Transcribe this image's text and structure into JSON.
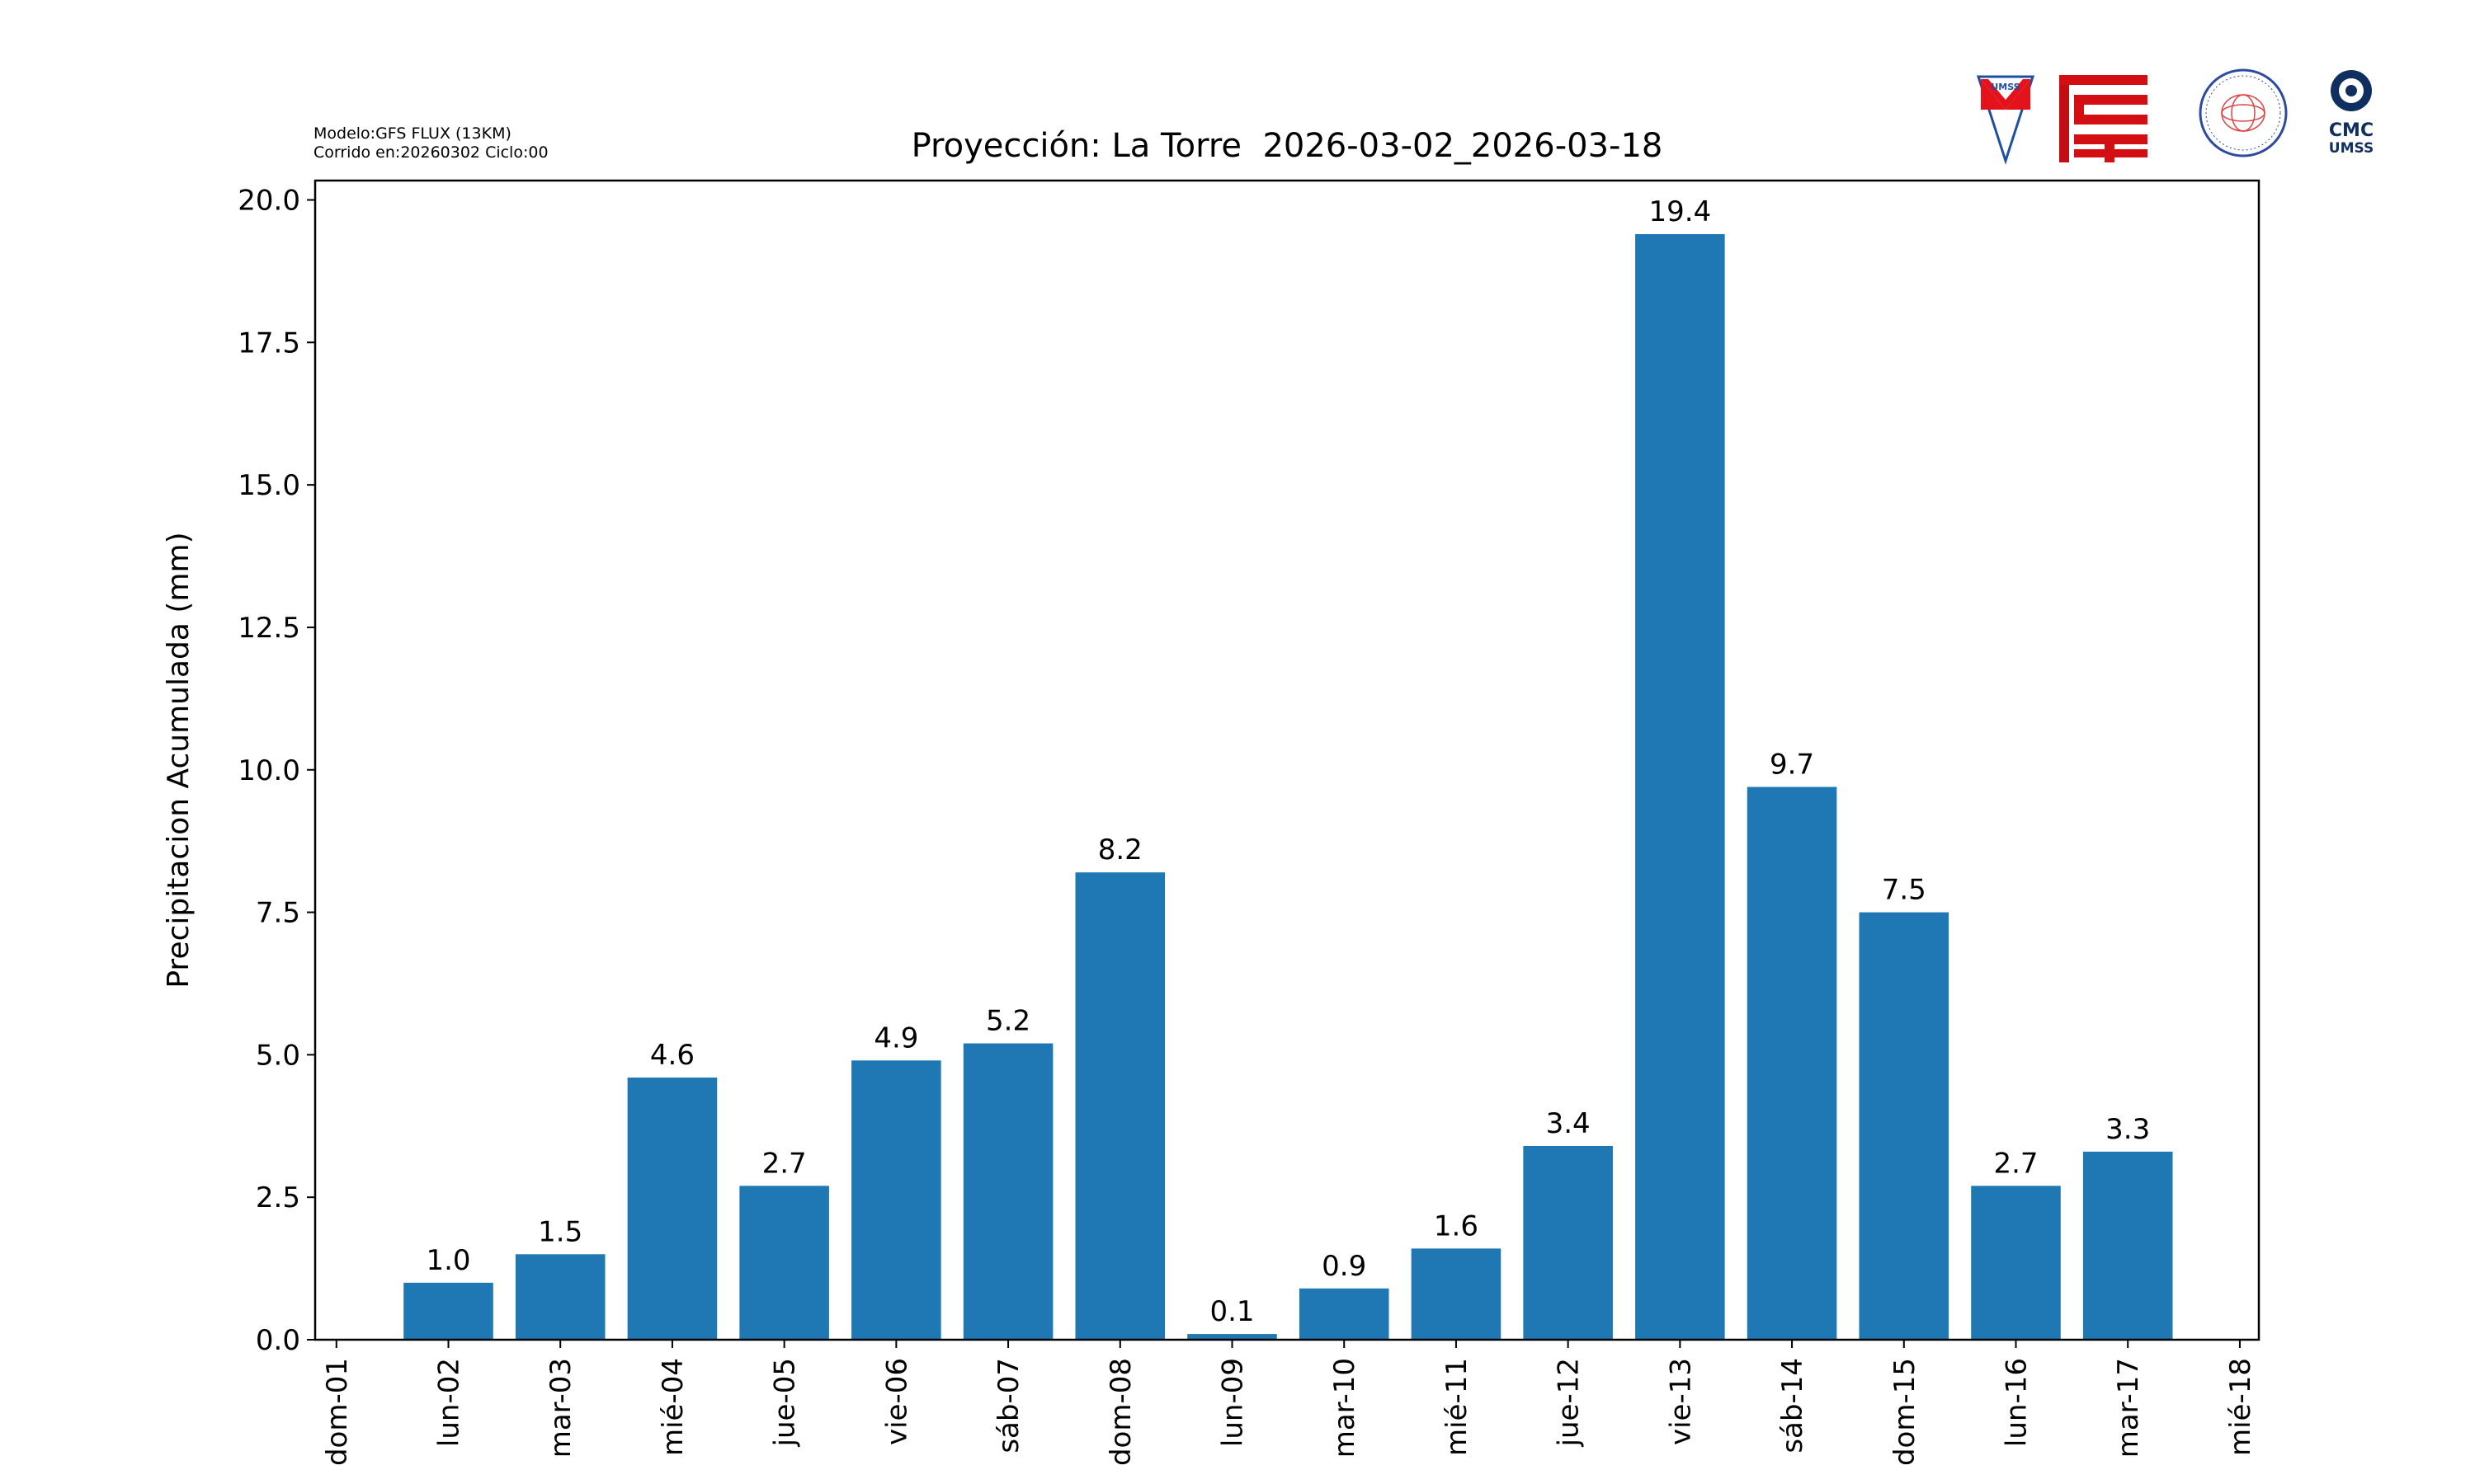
{
  "header": {
    "model_line": "Modelo:GFS FLUX (13KM)",
    "run_line": "Corrido en:20260302 Ciclo:00"
  },
  "logos": [
    {
      "name": "umss-logo",
      "text": "UMSS"
    },
    {
      "name": "fcyt-logo",
      "text": ""
    },
    {
      "name": "departamento-fisica-logo",
      "text": "DEPARTAMENTO DE FÍSICA FCyT-UMSS"
    },
    {
      "name": "cmc-umss-logo",
      "text": "CMC UMSS"
    }
  ],
  "chart_data": {
    "type": "bar",
    "title": "Proyección: La Torre  2026-03-02_2026-03-18",
    "xlabel": "",
    "ylabel": "Precipitacion Acumulada (mm)",
    "x_ticks": [
      "dom-01",
      "lun-02",
      "mar-03",
      "mié-04",
      "jue-05",
      "vie-06",
      "sáb-07",
      "dom-08",
      "lun-09",
      "mar-10",
      "mié-11",
      "jue-12",
      "vie-13",
      "sáb-14",
      "dom-15",
      "lun-16",
      "mar-17",
      "mié-18"
    ],
    "categories": [
      "lun-02",
      "mar-03",
      "mié-04",
      "jue-05",
      "vie-06",
      "sáb-07",
      "dom-08",
      "lun-09",
      "mar-10",
      "mié-11",
      "jue-12",
      "vie-13",
      "sáb-14",
      "dom-15",
      "lun-16",
      "mar-17"
    ],
    "values": [
      1.0,
      1.5,
      4.6,
      2.7,
      4.9,
      5.2,
      8.2,
      0.1,
      0.9,
      1.6,
      3.4,
      19.4,
      9.7,
      7.5,
      2.7,
      3.3
    ],
    "data_labels": [
      "1.0",
      "1.5",
      "4.6",
      "2.7",
      "4.9",
      "5.2",
      "8.2",
      "0.1",
      "0.9",
      "1.6",
      "3.4",
      "19.4",
      "9.7",
      "7.5",
      "2.7",
      "3.3"
    ],
    "y_ticks": [
      "0.0",
      "2.5",
      "5.0",
      "7.5",
      "10.0",
      "12.5",
      "15.0",
      "17.5",
      "20.0"
    ],
    "ylim": [
      0,
      20.34
    ],
    "grid": false,
    "bar_color": "#1f77b4"
  }
}
